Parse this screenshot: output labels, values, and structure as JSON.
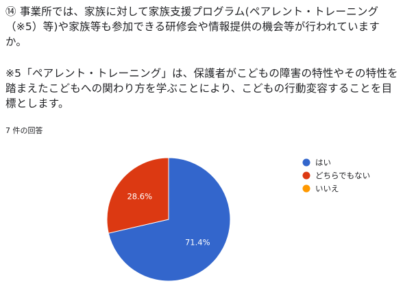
{
  "question": {
    "title": "⑭ 事業所では、家族に対して家族支援プログラム(ペアレント・トレーニング（※5）等)や家族等も参加できる研修会や情報提供の機会等が行われていますか。",
    "note": "※5「ペアレント・トレーニング」は、保護者がこどもの障害の特性やその特性を踏まえたこどもへの関わり方を学ぶことにより、こどもの行動変容することを目標とします。"
  },
  "response_count": "7 件の回答",
  "chart_data": {
    "type": "pie",
    "title": "",
    "slices": [
      {
        "label": "はい",
        "value": 71.4,
        "display": "71.4%",
        "color": "#3366cc"
      },
      {
        "label": "どちらでもない",
        "value": 28.6,
        "display": "28.6%",
        "color": "#dc3912"
      },
      {
        "label": "いいえ",
        "value": 0,
        "display": "",
        "color": "#ff9900"
      }
    ],
    "legend_position": "right"
  }
}
